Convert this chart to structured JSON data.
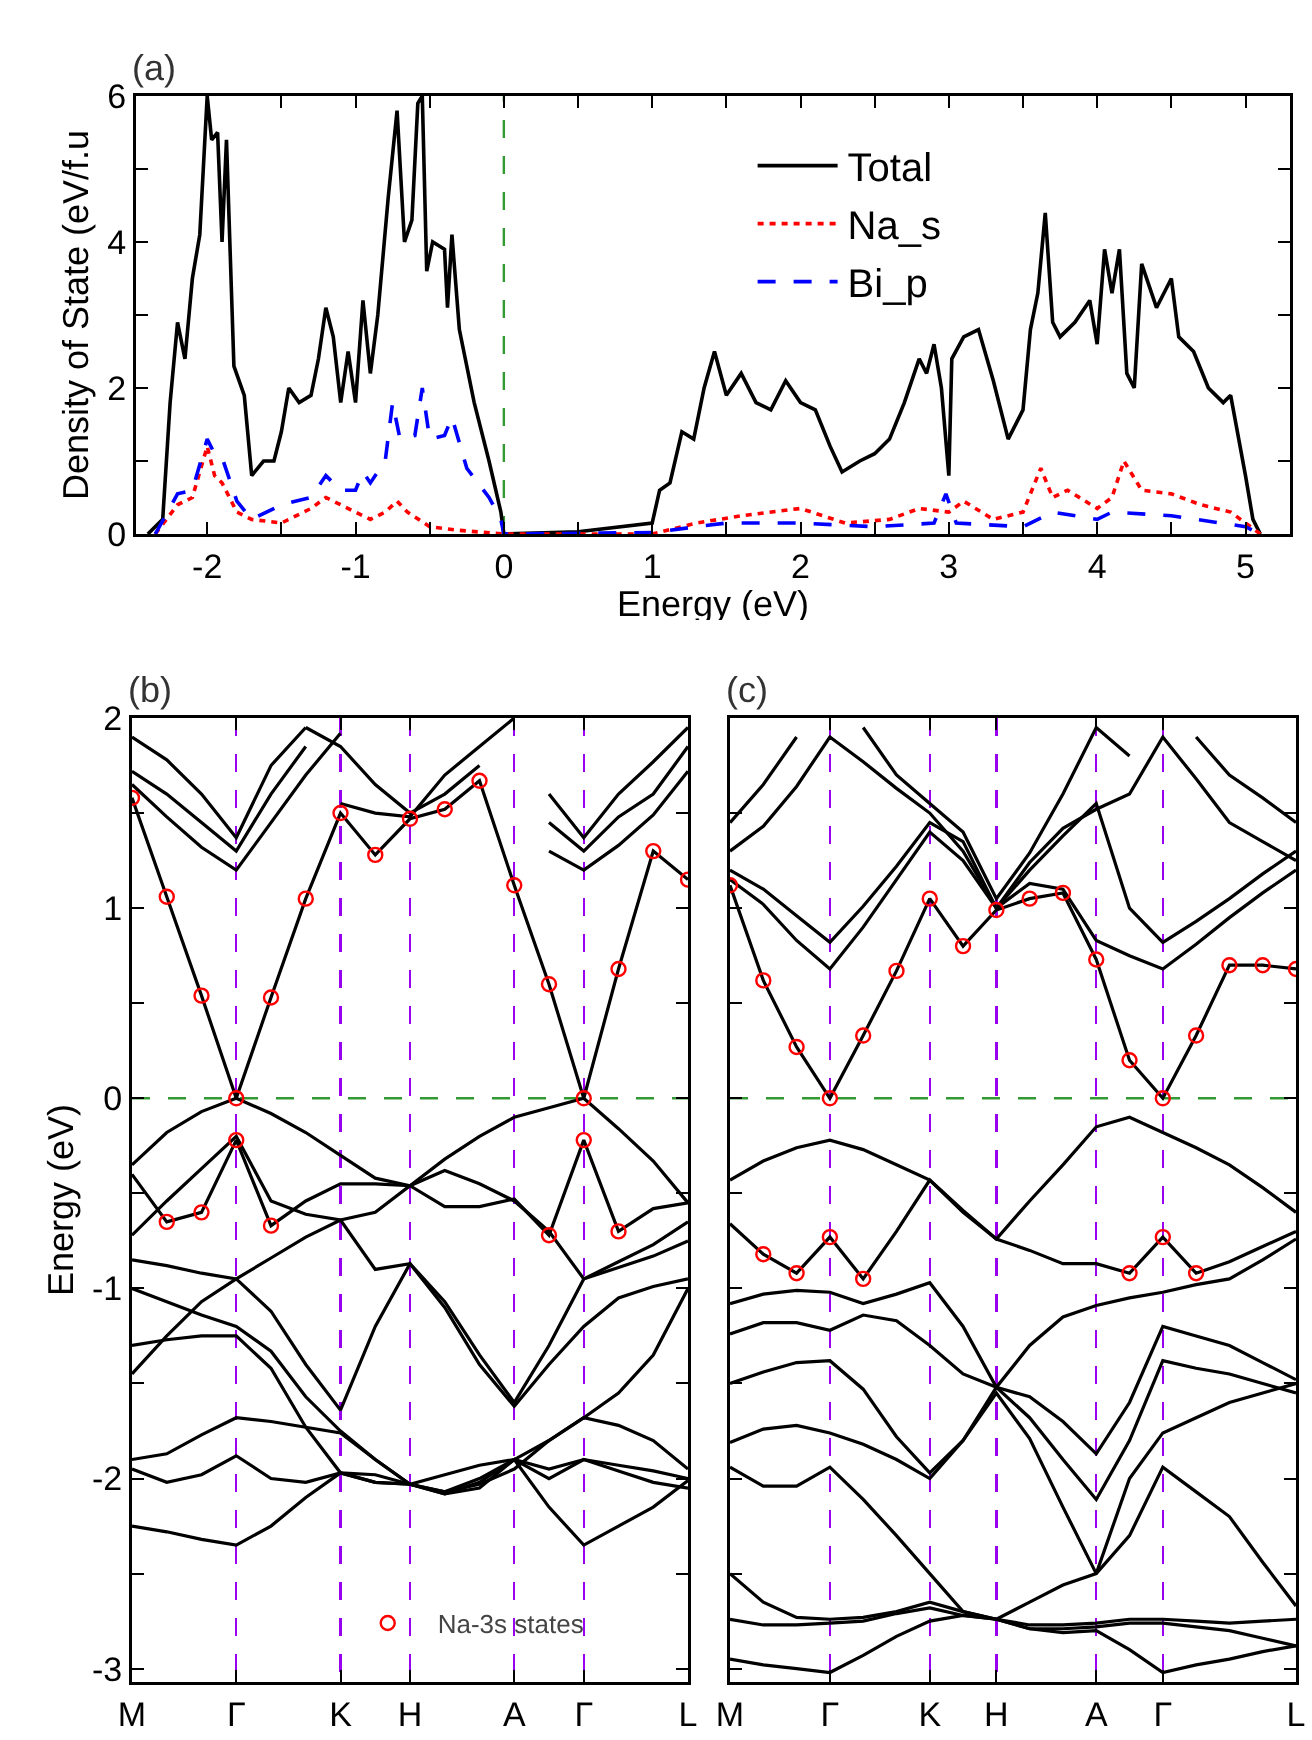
{
  "chart_data": [
    {
      "type": "line",
      "title": "(a)",
      "xlabel": "Energy (eV)",
      "ylabel": "Density of State (eV/f.u",
      "xlim": [
        -2.48,
        5.3
      ],
      "ylim": [
        0,
        6
      ],
      "xticks": [
        -2,
        {
          "value": -1.5,
          "label": null
        },
        -1,
        {
          "value": -0.5,
          "label": null
        },
        0,
        {
          "value": 0.5,
          "label": null
        },
        1,
        {
          "value": 1.5,
          "label": null
        },
        2,
        {
          "value": 2.5,
          "label": null
        },
        3,
        {
          "value": 3.5,
          "label": null
        },
        4,
        {
          "value": 4.5,
          "label": null
        },
        5
      ],
      "yticks": [
        0,
        {
          "value": 1,
          "label": null
        },
        2,
        {
          "value": 3,
          "label": null
        },
        4,
        {
          "value": 5,
          "label": null
        },
        6
      ],
      "legend": "top right",
      "ref_lines": [
        {
          "axis": "x",
          "value": 0,
          "color": "#339933",
          "line_style": "dashed"
        }
      ],
      "series": [
        {
          "name": "Total",
          "color": "#000000",
          "line_style": "solid",
          "x": [
            -2.4,
            -2.3,
            -2.25,
            -2.2,
            -2.15,
            -2.1,
            -2.05,
            -2.0,
            -1.97,
            -1.93,
            -1.9,
            -1.87,
            -1.82,
            -1.75,
            -1.7,
            -1.62,
            -1.55,
            -1.5,
            -1.45,
            -1.38,
            -1.3,
            -1.25,
            -1.2,
            -1.15,
            -1.1,
            -1.05,
            -1.0,
            -0.95,
            -0.9,
            -0.85,
            -0.78,
            -0.72,
            -0.67,
            -0.62,
            -0.58,
            -0.55,
            -0.52,
            -0.48,
            -0.4,
            -0.38,
            -0.35,
            -0.3,
            -0.2,
            -0.1,
            -0.02,
            0,
            0.5,
            1.0,
            1.05,
            1.12,
            1.2,
            1.28,
            1.35,
            1.42,
            1.5,
            1.6,
            1.7,
            1.8,
            1.9,
            2.0,
            2.1,
            2.2,
            2.28,
            2.4,
            2.5,
            2.6,
            2.7,
            2.8,
            2.85,
            2.9,
            2.95,
            3.0,
            3.02,
            3.1,
            3.2,
            3.3,
            3.4,
            3.5,
            3.55,
            3.6,
            3.65,
            3.7,
            3.75,
            3.85,
            3.95,
            4.0,
            4.05,
            4.1,
            4.15,
            4.2,
            4.25,
            4.3,
            4.4,
            4.5,
            4.55,
            4.65,
            4.75,
            4.85,
            4.9,
            5.0,
            5.05,
            5.1
          ],
          "values": [
            0,
            0.2,
            1.8,
            2.9,
            2.4,
            3.5,
            4.1,
            6.0,
            5.4,
            5.5,
            4.0,
            5.4,
            2.3,
            1.9,
            0.8,
            1.0,
            1.0,
            1.4,
            2.0,
            1.8,
            1.9,
            2.4,
            3.1,
            2.7,
            1.8,
            2.5,
            1.8,
            3.2,
            2.2,
            3.0,
            4.6,
            5.8,
            4.0,
            4.3,
            5.9,
            6.0,
            3.6,
            4.0,
            3.9,
            3.1,
            4.1,
            2.8,
            1.8,
            1.0,
            0.3,
            0,
            0.03,
            0.15,
            0.6,
            0.7,
            1.4,
            1.3,
            2.0,
            2.5,
            1.9,
            2.2,
            1.8,
            1.7,
            2.1,
            1.8,
            1.7,
            1.2,
            0.85,
            1.0,
            1.1,
            1.3,
            1.8,
            2.4,
            2.2,
            2.6,
            2.0,
            0.8,
            2.4,
            2.7,
            2.8,
            2.1,
            1.3,
            1.7,
            2.8,
            3.3,
            4.4,
            2.9,
            2.7,
            2.9,
            3.2,
            2.6,
            3.9,
            3.3,
            3.9,
            2.2,
            2.0,
            3.7,
            3.1,
            3.5,
            2.7,
            2.5,
            2.0,
            1.8,
            1.9,
            0.8,
            0.2,
            0
          ]
        },
        {
          "name": "Na_s",
          "color": "#ff0000",
          "line_style": "dotted",
          "x": [
            -2.35,
            -2.2,
            -2.1,
            -2.0,
            -1.95,
            -1.9,
            -1.8,
            -1.7,
            -1.5,
            -1.3,
            -1.2,
            -1.1,
            -1.0,
            -0.9,
            -0.8,
            -0.72,
            -0.65,
            -0.5,
            -0.3,
            0,
            1.0,
            1.3,
            1.6,
            2.0,
            2.3,
            2.6,
            2.8,
            3.0,
            3.1,
            3.3,
            3.5,
            3.62,
            3.7,
            3.8,
            4.0,
            4.1,
            4.18,
            4.3,
            4.5,
            4.7,
            4.9,
            5.1
          ],
          "values": [
            0,
            0.4,
            0.5,
            1.2,
            0.8,
            0.7,
            0.3,
            0.2,
            0.15,
            0.35,
            0.5,
            0.4,
            0.3,
            0.2,
            0.3,
            0.45,
            0.3,
            0.1,
            0.05,
            0,
            0,
            0.15,
            0.25,
            0.35,
            0.15,
            0.2,
            0.35,
            0.3,
            0.45,
            0.2,
            0.3,
            0.9,
            0.5,
            0.6,
            0.35,
            0.5,
            1.0,
            0.6,
            0.55,
            0.4,
            0.3,
            0
          ]
        },
        {
          "name": "Bi_p",
          "color": "#0000ff",
          "line_style": "dashed",
          "x": [
            -2.35,
            -2.2,
            -2.1,
            -2.0,
            -1.95,
            -1.9,
            -1.8,
            -1.7,
            -1.5,
            -1.3,
            -1.2,
            -1.1,
            -1.0,
            -0.95,
            -0.9,
            -0.8,
            -0.75,
            -0.7,
            -0.6,
            -0.55,
            -0.5,
            -0.4,
            -0.35,
            -0.25,
            -0.1,
            -0.02,
            0,
            1.0,
            1.3,
            1.5,
            2.0,
            2.5,
            2.9,
            2.98,
            3.05,
            3.5,
            3.7,
            4.0,
            4.1,
            4.5,
            5.0,
            5.1
          ],
          "values": [
            0,
            0.55,
            0.6,
            1.3,
            1.1,
            1.05,
            0.45,
            0.2,
            0.4,
            0.5,
            0.8,
            0.6,
            0.6,
            0.85,
            0.7,
            1.0,
            1.8,
            1.3,
            1.35,
            2.0,
            1.3,
            1.35,
            1.6,
            0.9,
            0.5,
            0.2,
            0,
            0.02,
            0.1,
            0.15,
            0.15,
            0.1,
            0.15,
            0.55,
            0.15,
            0.1,
            0.3,
            0.2,
            0.3,
            0.25,
            0.1,
            0
          ]
        }
      ]
    },
    {
      "type": "line",
      "title": "(b)",
      "ylabel": "Energy (eV)",
      "ylim": [
        -3.07,
        2
      ],
      "grid": "x",
      "categories": [
        "M",
        null,
        null,
        "Γ",
        null,
        null,
        "K",
        null,
        "H",
        null,
        null,
        "A",
        null,
        "Γ",
        null,
        null,
        "L"
      ],
      "yticks": [
        -3,
        {
          "value": -2.5,
          "label": null
        },
        -2,
        {
          "value": -1.5,
          "label": null
        },
        -1,
        {
          "value": -0.5,
          "label": null
        },
        0,
        {
          "value": 0.5,
          "label": null
        },
        1,
        {
          "value": 1.5,
          "label": null
        },
        2
      ],
      "legend": "bottom",
      "ref_lines": [
        {
          "axis": "y",
          "value": 0,
          "color": "#339933",
          "line_style": "dashed"
        }
      ],
      "series": [
        {
          "color": "#000000",
          "values": [
            1.58,
            1.06,
            0.54,
            0.0,
            0.53,
            1.05,
            1.5,
            1.28,
            1.47,
            1.52,
            1.67,
            1.12,
            0.6,
            0.0,
            0.68,
            1.3,
            1.15
          ]
        },
        {
          "color": "#000000",
          "values": [
            1.65,
            1.48,
            1.32,
            1.2,
            1.45,
            1.7,
            1.92,
            null,
            null,
            null,
            null,
            null,
            1.3,
            1.2,
            1.33,
            1.49,
            1.72
          ]
        },
        {
          "color": "#000000",
          "values": [
            1.72,
            1.6,
            1.45,
            1.3,
            1.6,
            1.85,
            null,
            null,
            null,
            null,
            null,
            null,
            1.45,
            1.3,
            1.48,
            1.6,
            1.85
          ]
        },
        {
          "color": "#000000",
          "values": [
            1.9,
            1.78,
            1.6,
            1.37,
            1.75,
            1.95,
            null,
            null,
            null,
            null,
            null,
            null,
            1.6,
            1.37,
            1.6,
            1.77,
            1.95
          ]
        },
        {
          "color": "#000000",
          "values": [
            null,
            null,
            null,
            null,
            null,
            null,
            1.55,
            1.5,
            1.48,
            1.7,
            1.85,
            2.0,
            null,
            null,
            null,
            null,
            null
          ]
        },
        {
          "color": "#000000",
          "values": [
            null,
            null,
            null,
            null,
            null,
            1.95,
            1.85,
            1.65,
            1.5,
            1.6,
            1.75,
            null,
            null,
            null,
            null,
            null,
            null
          ]
        },
        {
          "color": "#000000",
          "values": [
            -0.35,
            -0.18,
            -0.07,
            0.0,
            -0.08,
            -0.18,
            -0.3,
            -0.42,
            -0.46,
            -0.32,
            -0.2,
            -0.1,
            -0.05,
            0.0,
            -0.16,
            -0.33,
            -0.55
          ]
        },
        {
          "color": "#000000",
          "values": [
            -0.4,
            -0.65,
            -0.6,
            -0.22,
            -0.67,
            -0.54,
            -0.45,
            -0.45,
            -0.46,
            -0.57,
            -0.57,
            -0.53,
            -0.72,
            -0.22,
            -0.7,
            -0.58,
            -0.55
          ]
        },
        {
          "color": "#000000",
          "values": [
            -0.72,
            -0.54,
            -0.37,
            -0.2,
            -0.54,
            -0.61,
            -0.64,
            -0.9,
            -0.87,
            -1.07,
            -1.35,
            -1.6,
            -1.3,
            -0.95,
            -0.86,
            -0.77,
            -0.65
          ]
        },
        {
          "color": "#000000",
          "values": [
            -0.85,
            -0.88,
            -0.92,
            -0.95,
            -1.12,
            -1.4,
            -1.64,
            -1.2,
            -0.87,
            -1.1,
            -1.4,
            -1.62,
            -1.4,
            -1.2,
            -1.05,
            -0.99,
            -0.95
          ]
        },
        {
          "color": "#000000",
          "values": [
            -1.0,
            -1.07,
            -1.14,
            -1.2,
            -1.33,
            -1.57,
            -1.75,
            -1.9,
            -2.03,
            -1.98,
            -1.93,
            -1.9,
            -1.8,
            -1.68,
            -1.55,
            -1.35,
            -1.0
          ]
        },
        {
          "color": "#000000",
          "values": [
            -1.3,
            -1.27,
            -1.25,
            -1.25,
            -1.42,
            -1.73,
            -1.97,
            -1.98,
            -2.03,
            -2.08,
            -2.05,
            -1.9,
            -1.95,
            -1.9,
            -1.93,
            -1.96,
            -2.0
          ]
        },
        {
          "color": "#000000",
          "values": [
            -1.9,
            -1.87,
            -1.77,
            -1.68,
            -1.7,
            -1.73,
            -1.76,
            -1.9,
            -2.03,
            -2.07,
            -2.03,
            -1.95,
            -1.8,
            -1.68,
            -1.72,
            -1.8,
            -1.95
          ]
        },
        {
          "color": "#000000",
          "values": [
            -1.95,
            -2.02,
            -1.98,
            -1.88,
            -2.0,
            -2.02,
            -1.97,
            -2.02,
            -2.03,
            -2.08,
            -2.02,
            -1.9,
            -2.0,
            -1.9,
            -1.96,
            -2.02,
            -2.05
          ]
        },
        {
          "color": "#000000",
          "values": [
            -2.25,
            -2.28,
            -2.32,
            -2.35,
            -2.25,
            -2.1,
            -1.97,
            -2.02,
            -2.03,
            -2.07,
            -2.0,
            -1.9,
            -2.15,
            -2.35,
            -2.25,
            -2.15,
            -2.01
          ]
        },
        {
          "color": "#000000",
          "values": [
            -1.45,
            -1.25,
            -1.07,
            -0.95,
            -0.84,
            -0.73,
            -0.64,
            -0.6,
            -0.46,
            -0.38,
            -0.45,
            -0.54,
            -0.7,
            -0.95,
            -0.89,
            -0.83,
            -0.75
          ]
        },
        {
          "type": "scatter",
          "name": "Na-3s states",
          "color": "#ff0000",
          "marker": "circle",
          "values": [
            1.58,
            1.06,
            0.54,
            0.0,
            0.53,
            1.05,
            1.5,
            1.28,
            1.47,
            1.52,
            1.67,
            1.12,
            0.6,
            0.0,
            0.68,
            1.3,
            1.15
          ]
        },
        {
          "type": "scatter",
          "color": "#ff0000",
          "marker": "circle",
          "values": [
            null,
            -0.65,
            -0.6,
            -0.22,
            -0.67,
            null,
            null,
            null,
            null,
            null,
            null,
            null,
            -0.72,
            -0.22,
            -0.7,
            null,
            null
          ]
        }
      ]
    },
    {
      "type": "line",
      "title": "(c)",
      "ylim": [
        -3.07,
        2
      ],
      "tick_labels": "x",
      "grid": "x",
      "categories": [
        "M",
        null,
        null,
        "Γ",
        null,
        null,
        "K",
        null,
        "H",
        null,
        null,
        "A",
        null,
        "Γ",
        null,
        null,
        null,
        "L"
      ],
      "yticks": [
        -3,
        {
          "value": -2.5,
          "label": null
        },
        -2,
        {
          "value": -1.5,
          "label": null
        },
        -1,
        {
          "value": -0.5,
          "label": null
        },
        0,
        {
          "value": 0.5,
          "label": null
        },
        1,
        {
          "value": 1.5,
          "label": null
        },
        2
      ],
      "ref_lines": [
        {
          "axis": "y",
          "value": 0,
          "color": "#339933",
          "line_style": "dashed"
        }
      ],
      "series": [
        {
          "color": "#000000",
          "values": [
            1.12,
            0.62,
            0.27,
            0.0,
            0.33,
            0.67,
            1.05,
            0.8,
            0.99,
            1.05,
            1.08,
            0.73,
            0.2,
            0.0,
            0.33,
            0.7,
            0.7,
            0.68
          ]
        },
        {
          "color": "#000000",
          "values": [
            1.15,
            1.02,
            0.83,
            0.68,
            0.9,
            1.15,
            1.4,
            1.25,
            1.0,
            1.13,
            1.1,
            0.83,
            0.75,
            0.68,
            0.81,
            0.95,
            1.08,
            1.2
          ]
        },
        {
          "color": "#000000",
          "values": [
            1.2,
            1.1,
            0.96,
            0.82,
            1.01,
            1.22,
            1.45,
            1.35,
            1.0,
            1.2,
            1.38,
            1.55,
            1.0,
            0.82,
            0.93,
            1.05,
            1.18,
            1.3
          ]
        },
        {
          "color": "#000000",
          "values": [
            1.3,
            1.43,
            1.64,
            1.9,
            1.77,
            1.63,
            1.5,
            1.3,
            1.0,
            1.24,
            1.42,
            1.52,
            1.6,
            1.9,
            1.68,
            1.45,
            1.35,
            1.25
          ]
        },
        {
          "color": "#000000",
          "values": [
            1.45,
            1.65,
            1.9,
            null,
            1.95,
            1.7,
            1.55,
            1.4,
            1.05,
            1.29,
            1.6,
            1.95,
            1.8,
            null,
            1.9,
            1.7,
            1.58,
            1.45
          ]
        },
        {
          "color": "#000000",
          "values": [
            -0.43,
            -0.33,
            -0.26,
            -0.22,
            -0.27,
            -0.35,
            -0.43,
            -0.6,
            -0.74,
            -0.54,
            -0.35,
            -0.15,
            -0.1,
            -0.18,
            -0.26,
            -0.35,
            -0.47,
            -0.6
          ]
        },
        {
          "color": "#000000",
          "values": [
            -0.66,
            -0.82,
            -0.92,
            -0.73,
            -0.95,
            -0.7,
            -0.43,
            -0.59,
            -0.74,
            -0.8,
            -0.87,
            -0.87,
            -0.92,
            -0.73,
            -0.92,
            -0.86,
            -0.78,
            -0.7
          ]
        },
        {
          "color": "#000000",
          "values": [
            -1.08,
            -1.03,
            -1.01,
            -1.02,
            -1.08,
            -1.03,
            -0.97,
            -1.2,
            -1.52,
            -1.3,
            -1.15,
            -1.09,
            -1.05,
            -1.02,
            -0.98,
            -0.95,
            -0.85,
            -0.74
          ]
        },
        {
          "color": "#000000",
          "values": [
            -1.24,
            -1.18,
            -1.18,
            -1.22,
            -1.14,
            -1.17,
            -1.3,
            -1.45,
            -1.52,
            -1.57,
            -1.7,
            -1.87,
            -1.6,
            -1.2,
            -1.25,
            -1.3,
            -1.39,
            -1.48
          ]
        },
        {
          "color": "#000000",
          "values": [
            -1.5,
            -1.44,
            -1.39,
            -1.38,
            -1.53,
            -1.78,
            -1.97,
            -1.8,
            -1.52,
            -1.68,
            -1.9,
            -2.11,
            -1.8,
            -1.38,
            -1.42,
            -1.45,
            -1.5,
            -1.55
          ]
        },
        {
          "color": "#000000",
          "values": [
            -1.81,
            -1.74,
            -1.72,
            -1.76,
            -1.82,
            -1.9,
            -2.0,
            -1.8,
            -1.55,
            -1.79,
            -2.15,
            -2.5,
            -2.0,
            -1.76,
            -1.68,
            -1.6,
            -1.55,
            -1.5
          ]
        },
        {
          "color": "#000000",
          "values": [
            -1.94,
            -2.04,
            -2.04,
            -1.94,
            -2.11,
            -2.3,
            -2.5,
            -2.7,
            -2.74,
            -2.65,
            -2.56,
            -2.5,
            -2.3,
            -1.94,
            -2.07,
            -2.2,
            -2.44,
            -2.67
          ]
        },
        {
          "color": "#000000",
          "values": [
            -2.5,
            -2.65,
            -2.73,
            -2.74,
            -2.73,
            -2.7,
            -2.65,
            -2.7,
            -2.74,
            -2.77,
            -2.77,
            -2.76,
            -2.74,
            -2.74,
            -2.75,
            -2.76,
            -2.75,
            -2.74
          ]
        },
        {
          "color": "#000000",
          "values": [
            -2.74,
            -2.77,
            -2.77,
            -2.76,
            -2.75,
            -2.71,
            -2.68,
            -2.72,
            -2.74,
            -2.79,
            -2.79,
            -2.78,
            -2.76,
            -2.76,
            -2.78,
            -2.8,
            -2.84,
            -2.88
          ]
        },
        {
          "color": "#000000",
          "values": [
            -2.95,
            -2.98,
            -3.0,
            -3.02,
            -2.93,
            -2.83,
            -2.75,
            -2.72,
            -2.74,
            -2.79,
            -2.81,
            -2.8,
            -2.9,
            -3.02,
            -2.98,
            -2.95,
            -2.91,
            -2.88
          ]
        },
        {
          "type": "scatter",
          "color": "#ff0000",
          "marker": "circle",
          "values": [
            1.12,
            0.62,
            0.27,
            0.0,
            0.33,
            0.67,
            1.05,
            0.8,
            0.99,
            1.05,
            1.08,
            0.73,
            0.2,
            0.0,
            0.33,
            0.7,
            0.7,
            0.68
          ]
        },
        {
          "type": "scatter",
          "color": "#ff0000",
          "marker": "circle",
          "values": [
            null,
            -0.82,
            -0.92,
            -0.73,
            -0.95,
            null,
            null,
            null,
            null,
            null,
            null,
            null,
            -0.92,
            -0.73,
            -0.92,
            null,
            null,
            null
          ]
        }
      ]
    }
  ]
}
